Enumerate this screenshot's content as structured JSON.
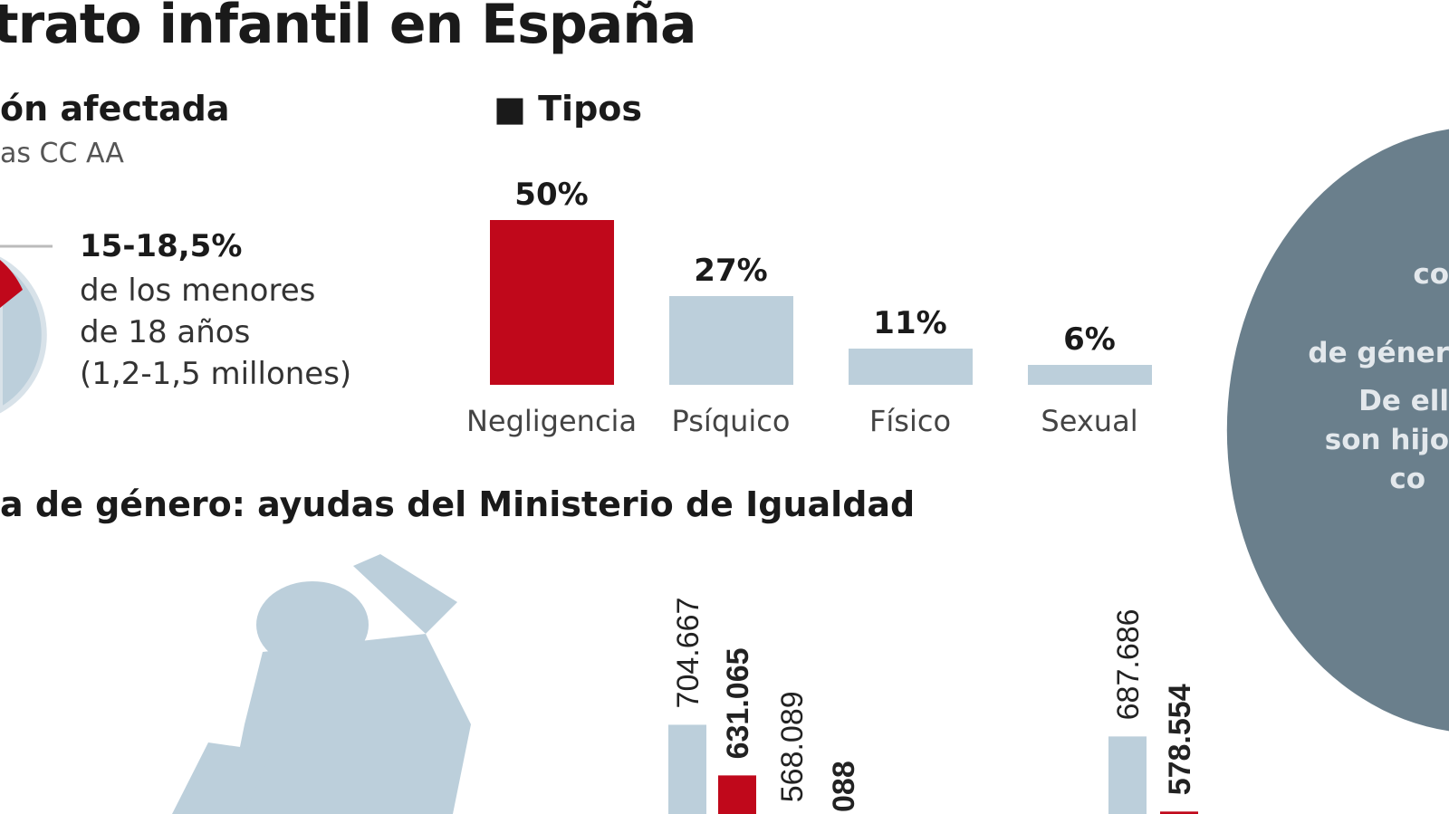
{
  "title": "trato infantil en España",
  "affected": {
    "heading": "ón afectada",
    "subheading": "as CC AA",
    "percent": "15-18,5%",
    "lines": [
      "de los menores",
      "de 18 años",
      "(1,2-1,5 millones)"
    ]
  },
  "circle_text": [
    "co",
    "de géner",
    "De ell",
    "son hijo",
    "co"
  ],
  "gender_section": {
    "heading": "a de género: ayudas del Ministerio de Igualdad"
  },
  "colors": {
    "accent": "#c0081b",
    "light": "#bccfdb",
    "dark_circle": "#6a7f8c"
  },
  "chart_data": [
    {
      "type": "bar",
      "title": "Tipos",
      "categories": [
        "Negligencia",
        "Psíquico",
        "Físico",
        "Sexual"
      ],
      "values": [
        50,
        27,
        11,
        6
      ],
      "labels": [
        "50%",
        "27%",
        "11%",
        "6%"
      ],
      "highlight": [
        true,
        false,
        false,
        false
      ],
      "ylim": [
        0,
        50
      ]
    },
    {
      "type": "bar",
      "title": "ayudas del Ministerio de Igualdad",
      "values": [
        704667,
        631065,
        568089,
        null,
        687686,
        578554
      ],
      "labels": [
        "704.667",
        "631.065",
        "568.089",
        "088",
        "687.686",
        "578.554"
      ],
      "highlight": [
        false,
        true,
        false,
        true,
        false,
        true
      ]
    }
  ]
}
